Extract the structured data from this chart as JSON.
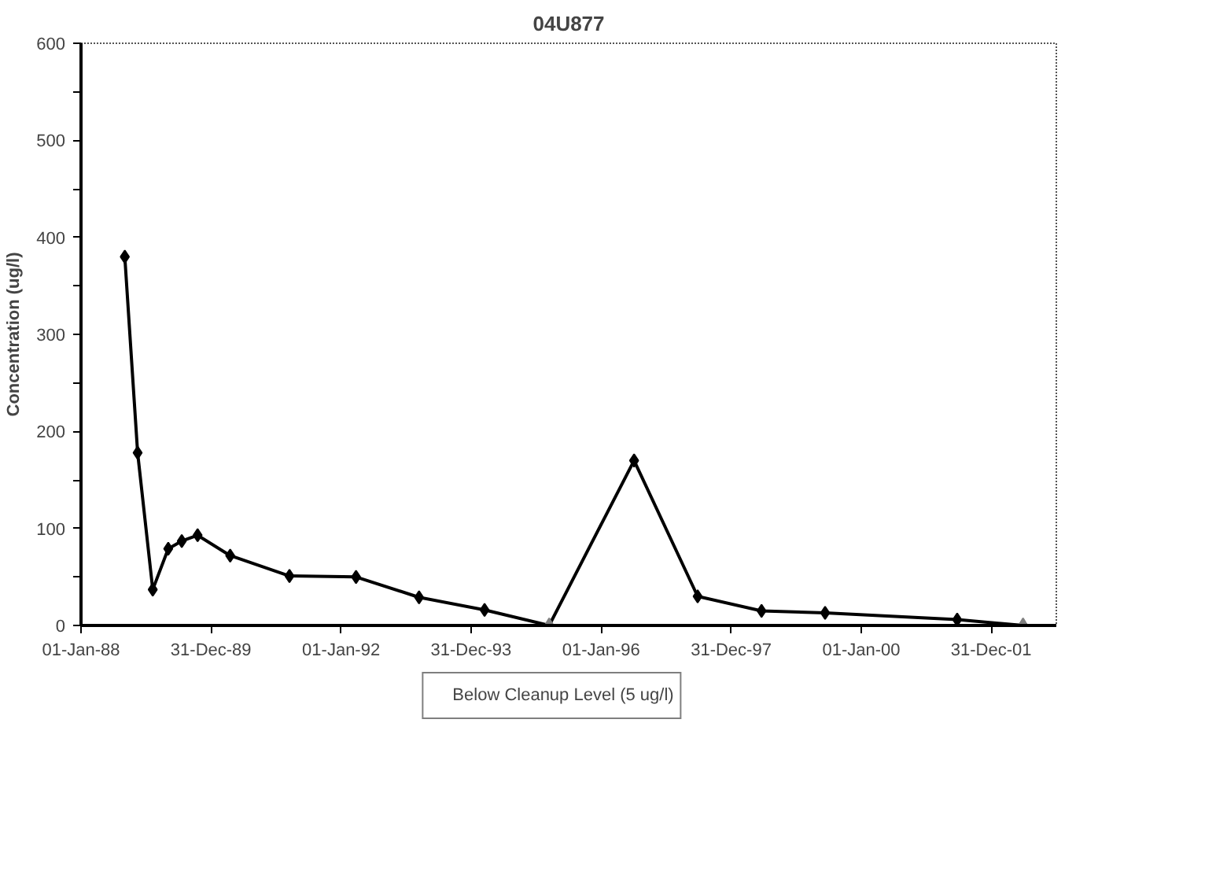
{
  "chart_data": {
    "type": "line",
    "title": "04U877",
    "ylabel": "Concentration (ug/l)",
    "xlim": [
      "1988-01-01",
      "2003-01-01"
    ],
    "xticks": [
      {
        "value": "1988-01-01",
        "label": "01-Jan-88"
      },
      {
        "value": "1989-12-31",
        "label": "31-Dec-89"
      },
      {
        "value": "1992-01-01",
        "label": "01-Jan-92"
      },
      {
        "value": "1993-12-31",
        "label": "31-Dec-93"
      },
      {
        "value": "1996-01-01",
        "label": "01-Jan-96"
      },
      {
        "value": "1997-12-31",
        "label": "31-Dec-97"
      },
      {
        "value": "2000-01-01",
        "label": "01-Jan-00"
      },
      {
        "value": "2001-12-31",
        "label": "31-Dec-01"
      }
    ],
    "ylim": [
      0,
      600
    ],
    "yticks": [
      0,
      {
        "value": 50,
        "label": null
      },
      100,
      {
        "value": 150,
        "label": null
      },
      200,
      {
        "value": 250,
        "label": null
      },
      300,
      {
        "value": 350,
        "label": null
      },
      400,
      {
        "value": 450,
        "label": null
      },
      500,
      {
        "value": 550,
        "label": null
      },
      600
    ],
    "grid": false,
    "legend": "bottom",
    "series": [
      {
        "type": "line",
        "marker": "diamond",
        "color": "#000000",
        "x": [
          "1988-09-03",
          "1988-11-14",
          "1989-02-07",
          "1989-05-05",
          "1989-07-20",
          "1989-10-17",
          "1990-04-18",
          "1991-03-17",
          "1992-03-25",
          "1993-03-14",
          "1994-03-17",
          "1995-03-15",
          "1996-07-04",
          "1997-06-26",
          "1998-06-20",
          "1999-06-12",
          "2001-06-23",
          "2002-06-28"
        ],
        "values": [
          380,
          178,
          37,
          79,
          87,
          93,
          72,
          51,
          50,
          29,
          16,
          0,
          170,
          30,
          15,
          13,
          6,
          0
        ]
      },
      {
        "type": "scatter",
        "marker": "triangle",
        "name": "Below Cleanup Level (5 ug/l)",
        "color": "#808080",
        "x": [
          "1995-03-15",
          "2002-06-28"
        ],
        "values": [
          0,
          0
        ]
      }
    ]
  }
}
